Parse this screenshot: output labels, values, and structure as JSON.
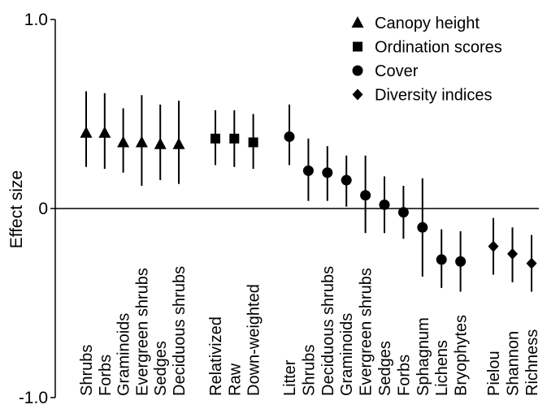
{
  "chart_data": {
    "type": "scatter",
    "title": "",
    "xlabel": "",
    "ylabel": "Effect size",
    "ylim": [
      -1.0,
      1.0
    ],
    "y_ticks": [
      {
        "value": 1.0,
        "label": "1.0"
      },
      {
        "value": 0,
        "label": "0"
      },
      {
        "value": -1.0,
        "label": "-1.0"
      }
    ],
    "reference_line": 0,
    "grid": false,
    "legend_position": "top-right",
    "legend": [
      {
        "marker": "triangle",
        "label": "Canopy height"
      },
      {
        "marker": "square",
        "label": "Ordination scores"
      },
      {
        "marker": "circle",
        "label": "Cover"
      },
      {
        "marker": "diamond",
        "label": "Diversity indices"
      }
    ],
    "groups": [
      {
        "marker": "triangle",
        "points": [
          {
            "label": "Shrubs",
            "value": 0.4,
            "low": 0.22,
            "high": 0.62
          },
          {
            "label": "Forbs",
            "value": 0.4,
            "low": 0.21,
            "high": 0.61
          },
          {
            "label": "Graminoids",
            "value": 0.35,
            "low": 0.19,
            "high": 0.53
          },
          {
            "label": "Evergreen shrubs",
            "value": 0.35,
            "low": 0.12,
            "high": 0.6
          },
          {
            "label": "Sedges",
            "value": 0.34,
            "low": 0.15,
            "high": 0.55
          },
          {
            "label": "Deciduous shrubs",
            "value": 0.34,
            "low": 0.13,
            "high": 0.57
          }
        ]
      },
      {
        "marker": "square",
        "points": [
          {
            "label": "Relativized",
            "value": 0.37,
            "low": 0.23,
            "high": 0.52
          },
          {
            "label": "Raw",
            "value": 0.37,
            "low": 0.22,
            "high": 0.52
          },
          {
            "label": "Down-weighted",
            "value": 0.35,
            "low": 0.21,
            "high": 0.5
          }
        ]
      },
      {
        "marker": "circle",
        "points": [
          {
            "label": "Litter",
            "value": 0.38,
            "low": 0.23,
            "high": 0.55
          },
          {
            "label": "Shrubs",
            "value": 0.2,
            "low": 0.04,
            "high": 0.37
          },
          {
            "label": "Deciduous shrubs",
            "value": 0.19,
            "low": 0.04,
            "high": 0.33
          },
          {
            "label": "Graminoids",
            "value": 0.15,
            "low": 0.01,
            "high": 0.28
          },
          {
            "label": "Evergreen shrubs",
            "value": 0.07,
            "low": -0.13,
            "high": 0.28
          },
          {
            "label": "Sedges",
            "value": 0.02,
            "low": -0.13,
            "high": 0.17
          },
          {
            "label": "Forbs",
            "value": -0.02,
            "low": -0.16,
            "high": 0.12
          },
          {
            "label": "Sphagnum",
            "value": -0.1,
            "low": -0.36,
            "high": 0.16
          },
          {
            "label": "Lichens",
            "value": -0.27,
            "low": -0.42,
            "high": -0.11
          },
          {
            "label": "Bryophytes",
            "value": -0.28,
            "low": -0.44,
            "high": -0.12
          }
        ]
      },
      {
        "marker": "diamond",
        "points": [
          {
            "label": "Pielou",
            "value": -0.2,
            "low": -0.35,
            "high": -0.05
          },
          {
            "label": "Shannon",
            "value": -0.24,
            "low": -0.39,
            "high": -0.1
          },
          {
            "label": "Richness",
            "value": -0.29,
            "low": -0.44,
            "high": -0.14
          }
        ]
      }
    ]
  }
}
